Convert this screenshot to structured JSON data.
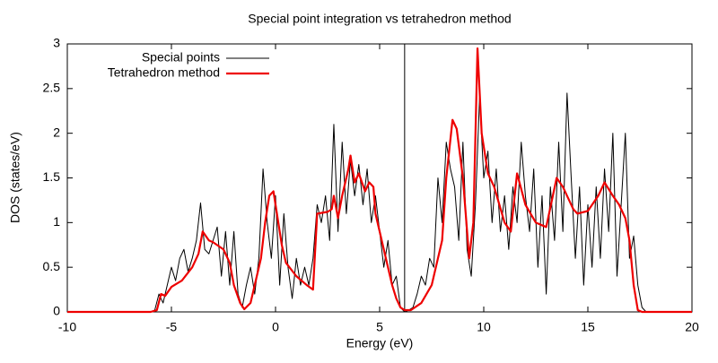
{
  "chart_data": {
    "type": "line",
    "title": "Special point integration vs tetrahedron method",
    "x_label": "Energy (eV)",
    "y_label": "DOS (states/eV)",
    "xlim": [
      -10,
      20
    ],
    "xticks": [
      -10,
      -5,
      0,
      5,
      10,
      15,
      20
    ],
    "ylim": [
      0,
      3
    ],
    "yticks": [
      0,
      0.5,
      1,
      1.5,
      2,
      2.5,
      3
    ],
    "vline_x": 6.2,
    "legend": "top-left",
    "series": [
      {
        "name": "Special points",
        "color": "#000000",
        "x": [
          -10,
          -6,
          -5.8,
          -5.6,
          -5.4,
          -5.2,
          -5,
          -4.8,
          -4.6,
          -4.4,
          -4.2,
          -4,
          -3.8,
          -3.6,
          -3.4,
          -3.2,
          -3,
          -2.8,
          -2.6,
          -2.4,
          -2.2,
          -2,
          -1.8,
          -1.6,
          -1.4,
          -1.2,
          -1,
          -0.8,
          -0.6,
          -0.4,
          -0.2,
          0,
          0.2,
          0.4,
          0.6,
          0.8,
          1,
          1.2,
          1.4,
          1.6,
          1.8,
          2,
          2.2,
          2.4,
          2.6,
          2.8,
          3,
          3.2,
          3.4,
          3.6,
          3.8,
          4,
          4.2,
          4.4,
          4.6,
          4.8,
          5,
          5.2,
          5.4,
          5.6,
          5.8,
          6,
          6.2,
          6.4,
          6.6,
          6.8,
          7,
          7.2,
          7.4,
          7.6,
          7.8,
          8,
          8.2,
          8.4,
          8.6,
          8.8,
          9,
          9.2,
          9.4,
          9.6,
          9.8,
          10,
          10.2,
          10.4,
          10.6,
          10.8,
          11,
          11.2,
          11.4,
          11.6,
          11.8,
          12,
          12.2,
          12.4,
          12.6,
          12.8,
          13,
          13.2,
          13.4,
          13.6,
          13.8,
          14,
          14.2,
          14.4,
          14.6,
          14.8,
          15,
          15.2,
          15.4,
          15.6,
          15.8,
          16,
          16.2,
          16.4,
          16.6,
          16.8,
          17,
          17.2,
          17.4,
          17.6,
          17.8,
          20
        ],
        "values": [
          0,
          0,
          0.02,
          0.2,
          0.1,
          0.3,
          0.5,
          0.35,
          0.6,
          0.7,
          0.45,
          0.6,
          0.8,
          1.22,
          0.7,
          0.65,
          0.8,
          0.95,
          0.4,
          0.9,
          0.3,
          0.9,
          0.2,
          0.05,
          0.3,
          0.5,
          0.2,
          0.6,
          1.6,
          1.0,
          0.6,
          1.3,
          0.3,
          1.1,
          0.5,
          0.15,
          0.6,
          0.3,
          0.5,
          0.3,
          0.6,
          1.2,
          1.0,
          1.3,
          0.8,
          2.1,
          0.9,
          1.9,
          1.1,
          1.7,
          1.3,
          1.65,
          1.2,
          1.6,
          1.0,
          1.3,
          0.9,
          0.5,
          0.8,
          0.3,
          0.4,
          0.05,
          0,
          0.02,
          0.05,
          0.2,
          0.4,
          0.3,
          0.6,
          0.5,
          1.5,
          1.0,
          1.9,
          1.6,
          1.4,
          0.8,
          1.9,
          0.7,
          0.4,
          1.2,
          2.4,
          1.5,
          1.8,
          1.0,
          1.6,
          0.9,
          1.3,
          0.7,
          1.4,
          1.0,
          1.9,
          1.3,
          0.9,
          1.6,
          0.5,
          1.3,
          0.2,
          1.4,
          0.8,
          1.9,
          0.9,
          2.45,
          1.5,
          0.6,
          1.4,
          0.3,
          1.2,
          0.5,
          1.4,
          0.6,
          1.6,
          0.9,
          2.0,
          0.4,
          1.2,
          2.0,
          0.6,
          0.85,
          0.3,
          0.05,
          0,
          0
        ]
      },
      {
        "name": "Tetrahedron method",
        "color": "#ee0000",
        "x": [
          -10,
          -6,
          -5.7,
          -5.5,
          -5.3,
          -5,
          -4.5,
          -4,
          -3.7,
          -3.5,
          -3.2,
          -3,
          -2.5,
          -2.2,
          -2,
          -1.7,
          -1.5,
          -1.2,
          -1,
          -0.7,
          -0.5,
          -0.3,
          -0.1,
          0,
          0.3,
          0.5,
          1,
          1.5,
          1.8,
          2,
          2.5,
          2.7,
          2.8,
          3,
          3.2,
          3.5,
          3.6,
          3.8,
          4,
          4.3,
          4.5,
          4.7,
          4.8,
          5,
          5.3,
          5.6,
          5.8,
          6,
          6.2,
          6.5,
          7,
          7.5,
          8,
          8.2,
          8.5,
          8.7,
          9,
          9.3,
          9.5,
          9.7,
          9.9,
          10.2,
          10.5,
          11,
          11.3,
          11.6,
          12,
          12.5,
          13,
          13.5,
          13.8,
          14,
          14.3,
          14.5,
          15,
          15.5,
          15.8,
          16.2,
          16.5,
          16.8,
          17,
          17.2,
          17.4,
          17.6,
          20
        ],
        "values": [
          0,
          0,
          0.02,
          0.2,
          0.18,
          0.28,
          0.35,
          0.5,
          0.65,
          0.9,
          0.8,
          0.78,
          0.7,
          0.55,
          0.3,
          0.1,
          0.03,
          0.1,
          0.3,
          0.6,
          1.0,
          1.3,
          1.35,
          1.2,
          0.75,
          0.55,
          0.4,
          0.3,
          0.25,
          1.1,
          1.12,
          1.15,
          1.3,
          1.05,
          1.3,
          1.6,
          1.75,
          1.45,
          1.55,
          1.35,
          1.45,
          1.4,
          1.1,
          0.9,
          0.6,
          0.3,
          0.15,
          0.05,
          0.02,
          0.02,
          0.1,
          0.3,
          0.8,
          1.5,
          2.15,
          2.05,
          1.5,
          0.6,
          1.0,
          2.95,
          2.0,
          1.55,
          1.4,
          1.0,
          0.9,
          1.55,
          1.2,
          1.0,
          0.95,
          1.5,
          1.4,
          1.3,
          1.15,
          1.1,
          1.13,
          1.3,
          1.45,
          1.3,
          1.2,
          1.05,
          0.8,
          0.3,
          0.02,
          0,
          0
        ]
      }
    ]
  }
}
